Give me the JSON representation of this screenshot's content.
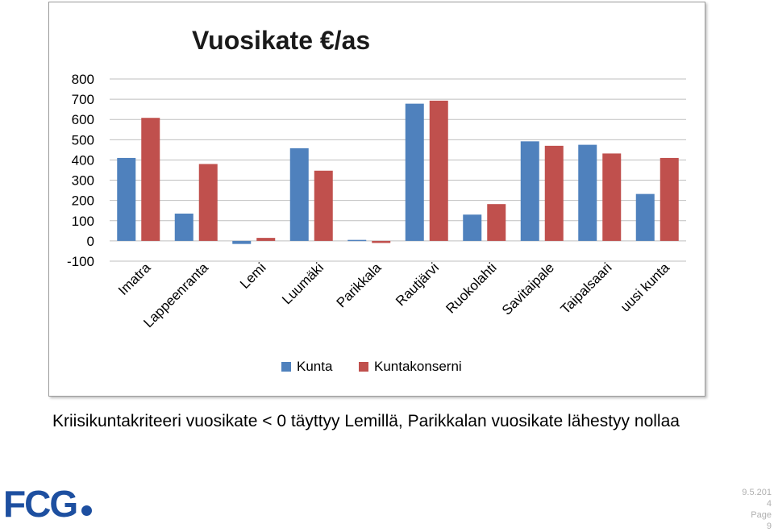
{
  "chart_data": {
    "type": "bar",
    "title": "Vuosikate €/as",
    "categories": [
      "Imatra",
      "Lappeenranta",
      "Lemi",
      "Luumäki",
      "Parikkala",
      "Rautjärvi",
      "Ruokolahti",
      "Savitaipale",
      "Taipalsaari",
      "uusi kunta"
    ],
    "series": [
      {
        "name": "Kunta",
        "color": "#4f81bd",
        "values": [
          410,
          135,
          -15,
          458,
          5,
          678,
          130,
          492,
          475,
          232
        ]
      },
      {
        "name": "Kuntakonserni",
        "color": "#c0504d",
        "values": [
          608,
          380,
          15,
          347,
          -10,
          693,
          182,
          470,
          432,
          410
        ]
      }
    ],
    "ylim": [
      -100,
      800
    ],
    "yticks": [
      "-100",
      "0",
      "100",
      "200",
      "300",
      "400",
      "500",
      "600",
      "700",
      "800"
    ],
    "xlabel": "",
    "ylabel": "",
    "grid": true,
    "legend": "bottom"
  },
  "caption": "Kriisikuntakriteeri vuosikate < 0 täyttyy Lemillä, Parikkalan vuosikate lähestyy nollaa",
  "logo": {
    "text": "FCG",
    "color": "#1d4fa0"
  },
  "footer": {
    "date": "9.5.2014",
    "page_label": "Page",
    "page_number": "9"
  }
}
